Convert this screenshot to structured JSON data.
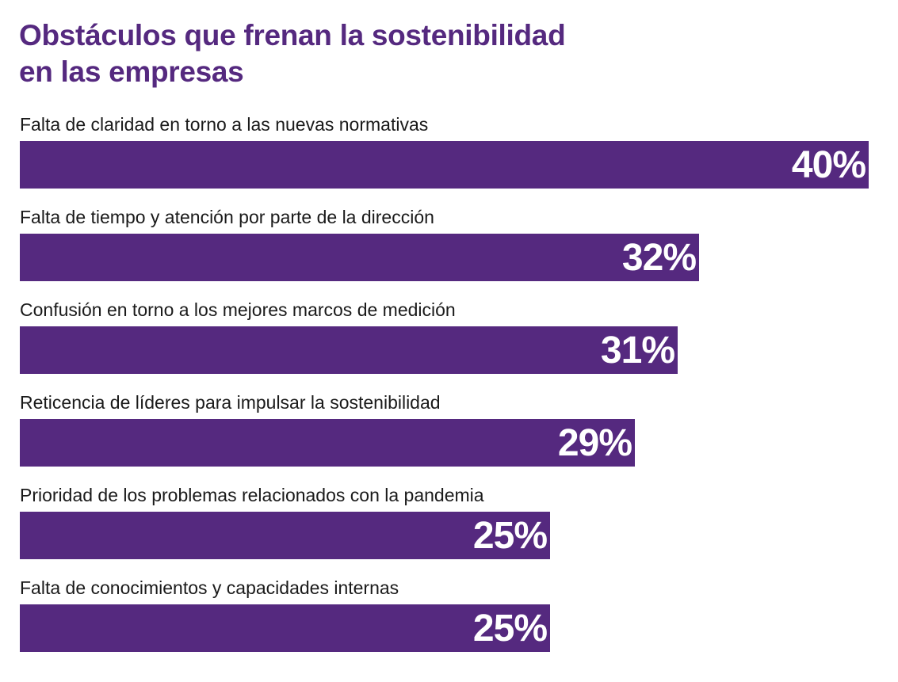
{
  "chart_data": {
    "type": "bar",
    "orientation": "horizontal",
    "title": "Obstáculos que frenan la sostenibilidad en las empresas",
    "title_lines": [
      "Obstáculos que frenan la sostenibilidad",
      "en las empresas"
    ],
    "categories": [
      "Falta de claridad en torno a las nuevas normativas",
      "Falta de tiempo y atención por parte de la dirección",
      "Confusión en torno a los mejores marcos de medición",
      "Reticencia de líderes para impulsar la sostenibilidad",
      "Prioridad de los problemas relacionados con la pandemia",
      "Falta de conocimientos y capacidades internas"
    ],
    "values": [
      40,
      32,
      31,
      29,
      25,
      25
    ],
    "value_labels": [
      "40%",
      "32%",
      "31%",
      "29%",
      "25%",
      "25%"
    ],
    "unit": "%",
    "xlabel": "",
    "ylabel": "",
    "bar_color": "#55297f",
    "label_color": "#ffffff",
    "title_color": "#55297f"
  }
}
